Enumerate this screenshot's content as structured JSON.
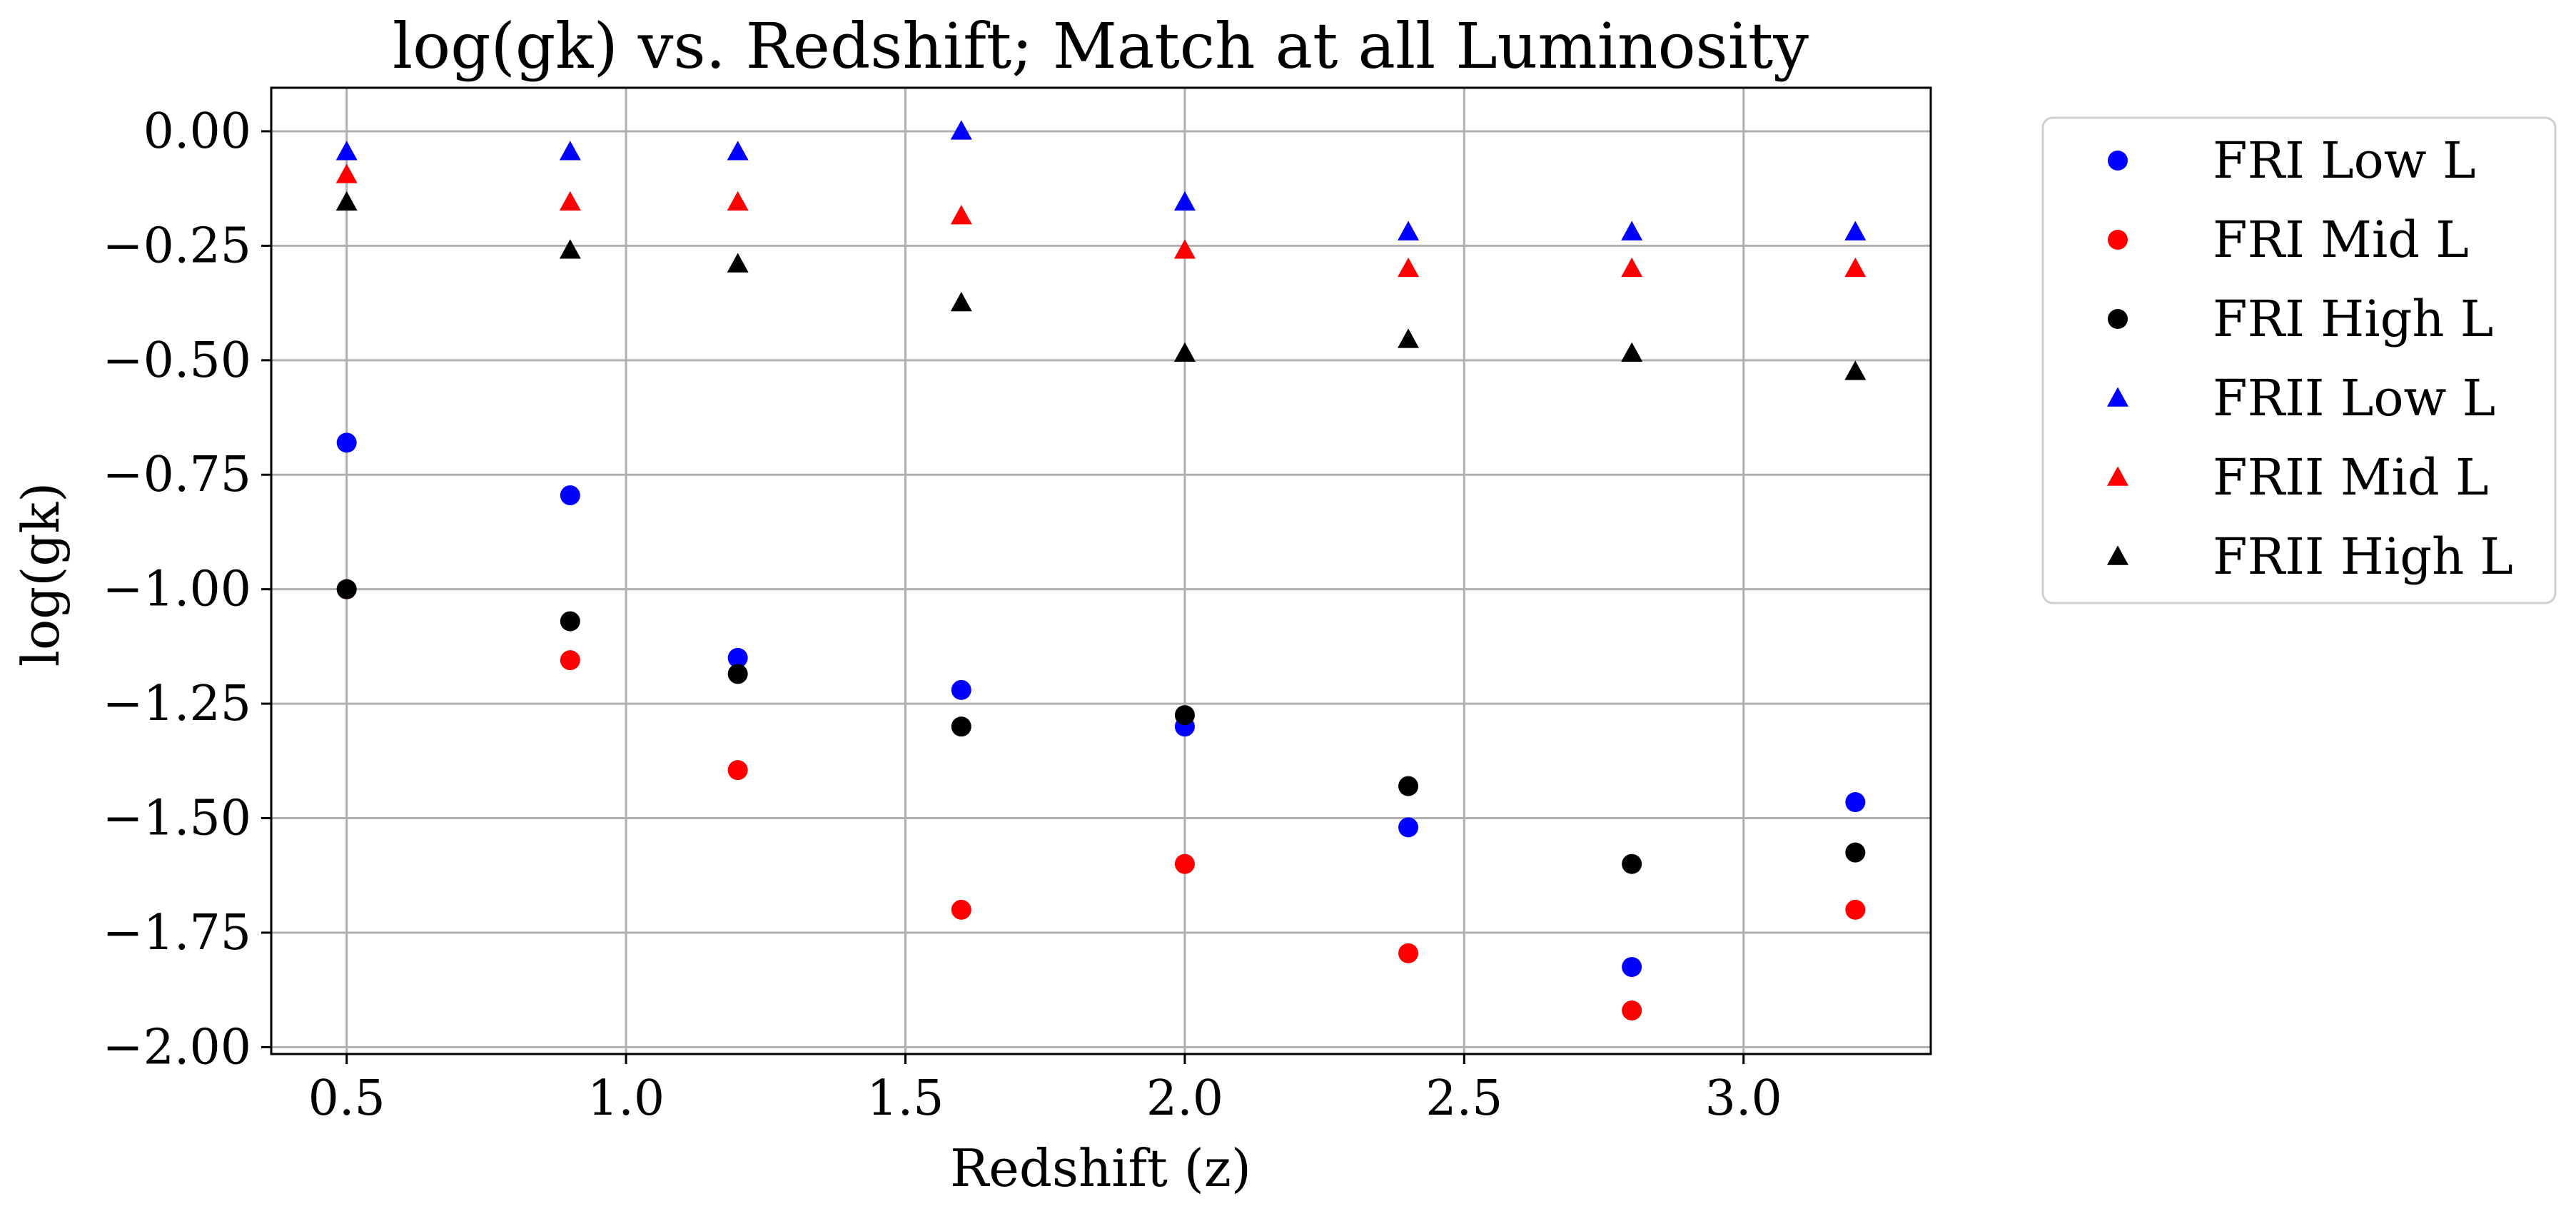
{
  "chart_data": {
    "type": "scatter",
    "title": "log(gk) vs. Redshift; Match at all Luminosity",
    "xlabel": "Redshift (z)",
    "ylabel": "log(gk)",
    "xlim": [
      0.365,
      3.335
    ],
    "ylim": [
      -2.015,
      0.095
    ],
    "xticks": [
      0.5,
      1.0,
      1.5,
      2.0,
      2.5,
      3.0
    ],
    "xtick_labels": [
      "0.5",
      "1.0",
      "1.5",
      "2.0",
      "2.5",
      "3.0"
    ],
    "yticks": [
      0.0,
      -0.25,
      -0.5,
      -0.75,
      -1.0,
      -1.25,
      -1.5,
      -1.75,
      -2.0
    ],
    "ytick_labels": [
      "0.00",
      "−0.25",
      "−0.50",
      "−0.75",
      "−1.00",
      "−1.25",
      "−1.50",
      "−1.75",
      "−2.00"
    ],
    "grid": true,
    "legend_position": "outside-right-top",
    "x": [
      0.5,
      0.9,
      1.2,
      1.6,
      2.0,
      2.4,
      2.8,
      3.2
    ],
    "series": [
      {
        "name": "FRI Low L",
        "marker": "circle",
        "color": "#0000ff",
        "values": [
          -0.68,
          -0.795,
          -1.15,
          -1.22,
          -1.3,
          -1.52,
          -1.825,
          -1.465
        ]
      },
      {
        "name": "FRI Mid L",
        "marker": "circle",
        "color": "#ff0000",
        "values": [
          -1.0,
          -1.155,
          -1.395,
          -1.7,
          -1.6,
          -1.795,
          -1.92,
          -1.7
        ]
      },
      {
        "name": "FRI High L",
        "marker": "circle",
        "color": "#000000",
        "values": [
          -1.0,
          -1.07,
          -1.185,
          -1.3,
          -1.275,
          -1.43,
          -1.6,
          -1.575
        ]
      },
      {
        "name": "FRII Low L",
        "marker": "triangle",
        "color": "#0000ff",
        "values": [
          -0.045,
          -0.045,
          -0.045,
          0.0,
          -0.155,
          -0.22,
          -0.22,
          -0.22
        ]
      },
      {
        "name": "FRII Mid L",
        "marker": "triangle",
        "color": "#ff0000",
        "values": [
          -0.095,
          -0.155,
          -0.155,
          -0.185,
          -0.26,
          -0.3,
          -0.3,
          -0.3
        ]
      },
      {
        "name": "FRII High L",
        "marker": "triangle",
        "color": "#000000",
        "values": [
          -0.155,
          -0.26,
          -0.29,
          -0.375,
          -0.485,
          -0.455,
          -0.485,
          -0.525
        ]
      }
    ]
  }
}
